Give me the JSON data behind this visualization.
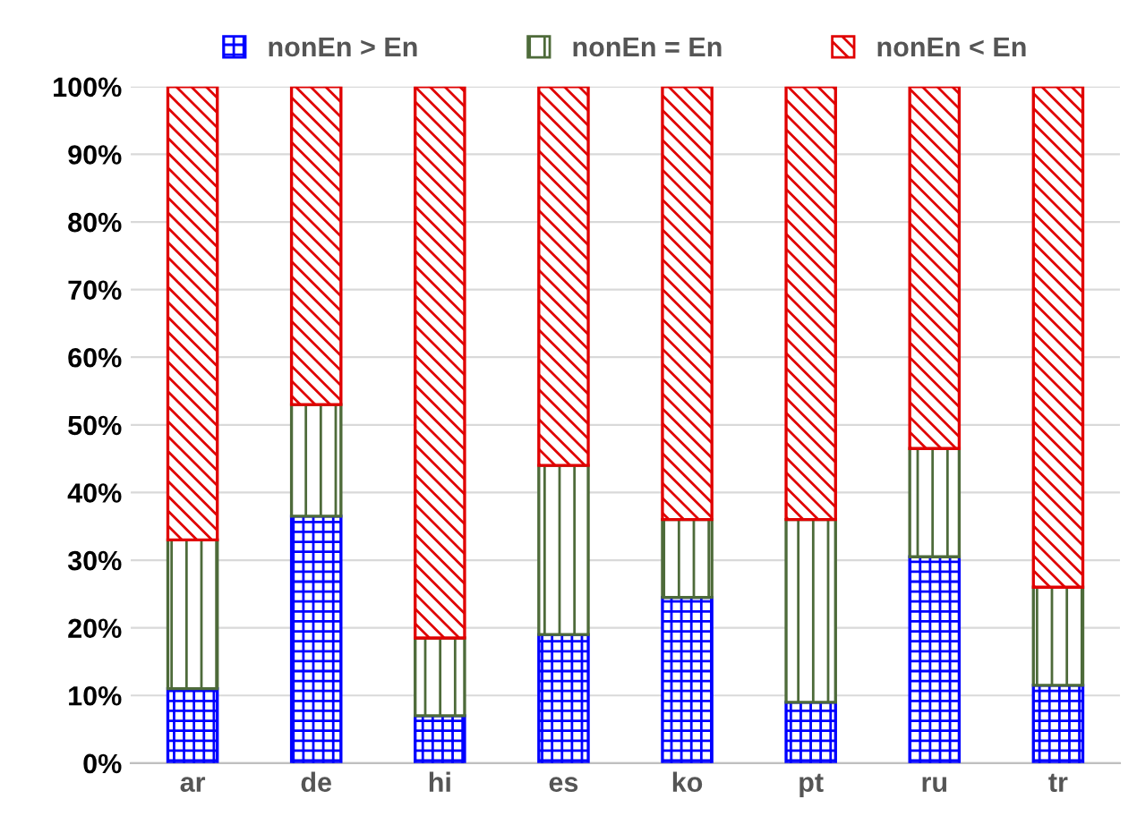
{
  "chart_data": {
    "type": "bar",
    "stacked": true,
    "categories": [
      "ar",
      "de",
      "hi",
      "es",
      "ko",
      "pt",
      "ru",
      "tr"
    ],
    "series": [
      {
        "name": "nonEn > En",
        "color": "#0000ff",
        "values": [
          11,
          36.5,
          7,
          19,
          24.5,
          9,
          30.5,
          11.5
        ]
      },
      {
        "name": "nonEn = En",
        "color": "#4e6b3a",
        "values": [
          22,
          16.5,
          11.5,
          25,
          11.5,
          27,
          16,
          14.5
        ]
      },
      {
        "name": "nonEn < En",
        "color": "#e00000",
        "values": [
          67,
          47,
          81.5,
          56,
          64,
          64,
          53.5,
          74
        ]
      }
    ],
    "ylim": [
      0,
      100
    ],
    "yticks": [
      {
        "value": 0,
        "label": "0%"
      },
      {
        "value": 10,
        "label": "10%"
      },
      {
        "value": 20,
        "label": "20%"
      },
      {
        "value": 30,
        "label": "30%"
      },
      {
        "value": 40,
        "label": "40%"
      },
      {
        "value": 50,
        "label": "50%"
      },
      {
        "value": 60,
        "label": "60%"
      },
      {
        "value": 70,
        "label": "70%"
      },
      {
        "value": 80,
        "label": "80%"
      },
      {
        "value": 90,
        "label": "90%"
      },
      {
        "value": 100,
        "label": "100%"
      }
    ],
    "grid": "y",
    "legend": "top"
  }
}
